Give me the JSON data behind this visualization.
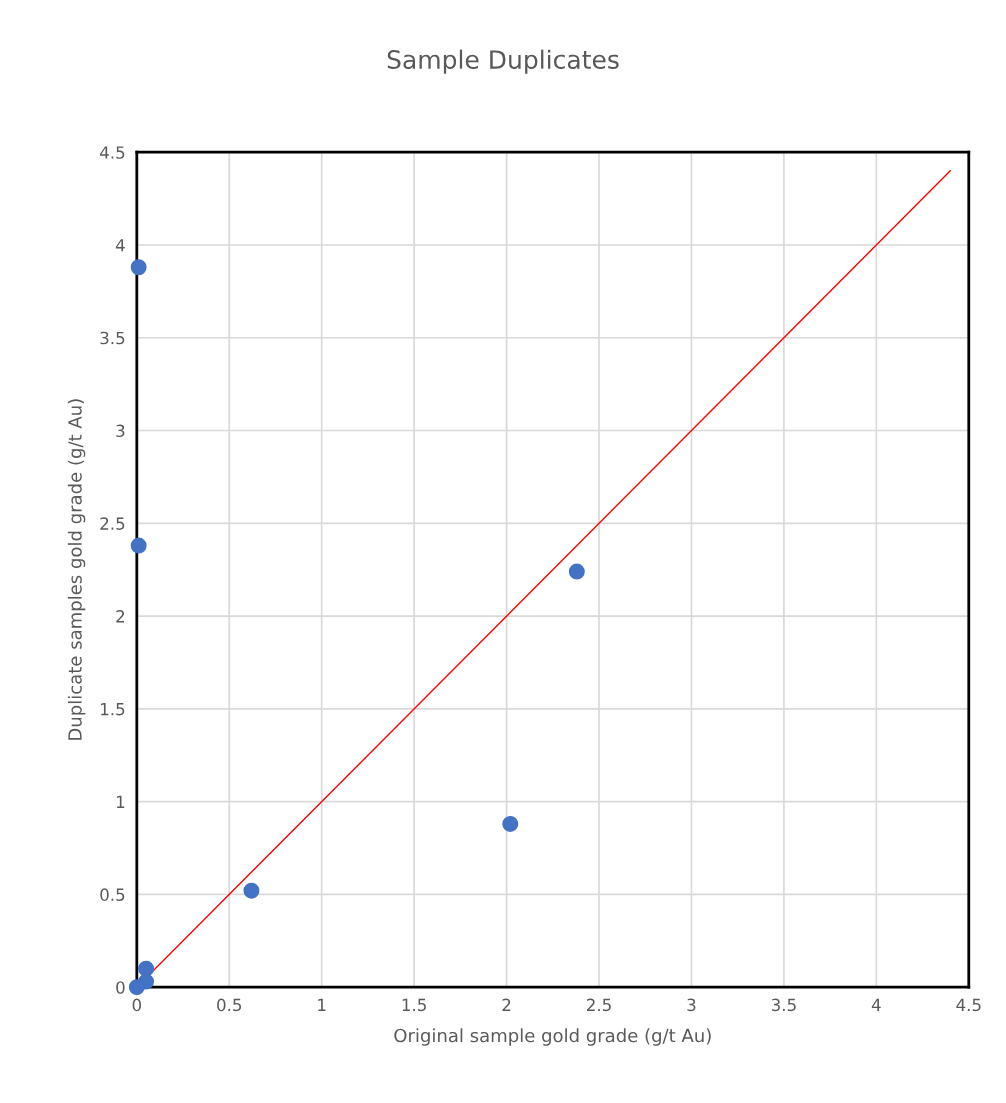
{
  "chart_data": {
    "type": "scatter",
    "title": "Sample Duplicates",
    "xlabel": "Original sample gold grade (g/t Au)",
    "ylabel": "Duplicate samples gold grade (g/t Au)",
    "series": [
      {
        "color": "#4472c4",
        "x": [
          0.01,
          0.01,
          2.38,
          2.02,
          0.62,
          0.05,
          0.05,
          0.0
        ],
        "values": [
          3.88,
          2.38,
          2.24,
          0.88,
          0.52,
          0.1,
          0.03,
          0.0
        ],
        "marker": "circle"
      },
      {
        "type": "line",
        "color": "#ff0000",
        "x": [
          0,
          4.4
        ],
        "values": [
          0,
          4.4
        ],
        "marker": "none",
        "line_style": "solid"
      }
    ],
    "xlim": [
      0,
      4.5
    ],
    "ylim": [
      0,
      4.5
    ],
    "xticks": [
      0,
      0.5,
      1,
      1.5,
      2,
      2.5,
      3,
      3.5,
      4,
      4.5
    ],
    "yticks": [
      0,
      0.5,
      1,
      1.5,
      2,
      2.5,
      3,
      3.5,
      4,
      4.5
    ],
    "grid": true,
    "legend": false
  }
}
